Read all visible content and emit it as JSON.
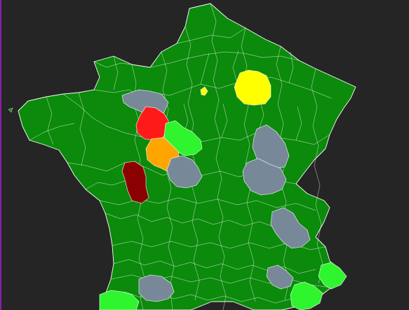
{
  "map": {
    "background": "#252525",
    "land_color": "#0b8a0b",
    "legend_colors": {
      "red": "#ff1a1a",
      "orange": "#ffa500",
      "dark_red": "#8b0000",
      "yellow": "#ffff00",
      "light_green": "#2ef52e",
      "gray": "#778899"
    }
  }
}
